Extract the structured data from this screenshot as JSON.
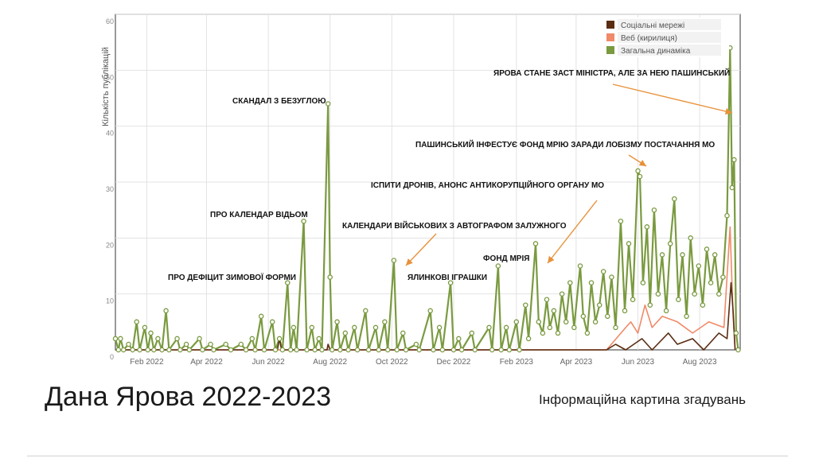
{
  "slide": {
    "title": "Дана Ярова 2022-2023",
    "subtitle": "Інформаційна картина згадувань"
  },
  "colors": {
    "social": "#5a2d12",
    "web": "#f08a68",
    "total": "#7a9a40",
    "arrow": "#e8913a"
  },
  "chart_data": {
    "type": "line",
    "title": "",
    "xlabel": "",
    "ylabel": "Кількість публікацій",
    "ylim": [
      0,
      60
    ],
    "yticks": [
      0,
      10,
      20,
      30,
      40,
      50,
      60
    ],
    "xlim": [
      "2022-01-01",
      "2023-09-10"
    ],
    "xticks": [
      {
        "date": "2022-02-01",
        "label": "Feb 2022"
      },
      {
        "date": "2022-04-01",
        "label": "Apr 2022"
      },
      {
        "date": "2022-06-01",
        "label": "Jun 2022"
      },
      {
        "date": "2022-08-01",
        "label": "Aug 2022"
      },
      {
        "date": "2022-10-01",
        "label": "Oct 2022"
      },
      {
        "date": "2022-12-01",
        "label": "Dec 2022"
      },
      {
        "date": "2023-02-01",
        "label": "Feb 2023"
      },
      {
        "date": "2023-04-01",
        "label": "Apr 2023"
      },
      {
        "date": "2023-06-01",
        "label": "Jun 2023"
      },
      {
        "date": "2023-08-01",
        "label": "Aug 2023"
      }
    ],
    "grid": true,
    "legend_position": "top-right",
    "series": [
      {
        "name": "Соціальні мережі",
        "color": "#5a2d12",
        "points": [
          [
            "2022-01-01",
            0
          ],
          [
            "2022-06-10",
            0
          ],
          [
            "2022-06-12",
            2
          ],
          [
            "2022-06-14",
            0
          ],
          [
            "2022-07-29",
            0
          ],
          [
            "2022-07-30",
            1
          ],
          [
            "2022-08-01",
            0
          ],
          [
            "2023-05-01",
            0
          ],
          [
            "2023-05-10",
            1
          ],
          [
            "2023-05-20",
            0
          ],
          [
            "2023-06-05",
            2
          ],
          [
            "2023-06-15",
            0
          ],
          [
            "2023-07-01",
            3
          ],
          [
            "2023-07-10",
            1
          ],
          [
            "2023-07-25",
            2
          ],
          [
            "2023-08-05",
            0
          ],
          [
            "2023-08-20",
            3
          ],
          [
            "2023-08-28",
            2
          ],
          [
            "2023-09-01",
            12
          ],
          [
            "2023-09-03",
            7
          ],
          [
            "2023-09-05",
            0
          ]
        ]
      },
      {
        "name": "Веб (кирилиця)",
        "color": "#f08a68",
        "points": [
          [
            "2022-01-01",
            0
          ],
          [
            "2022-07-29",
            0
          ],
          [
            "2022-07-30",
            1
          ],
          [
            "2022-08-01",
            0
          ],
          [
            "2023-05-01",
            0
          ],
          [
            "2023-05-20",
            4
          ],
          [
            "2023-05-25",
            5
          ],
          [
            "2023-06-01",
            3
          ],
          [
            "2023-06-08",
            8
          ],
          [
            "2023-06-15",
            4
          ],
          [
            "2023-06-25",
            6
          ],
          [
            "2023-07-10",
            5
          ],
          [
            "2023-07-25",
            3
          ],
          [
            "2023-08-10",
            5
          ],
          [
            "2023-08-25",
            4
          ],
          [
            "2023-08-31",
            22
          ],
          [
            "2023-09-03",
            6
          ],
          [
            "2023-09-05",
            0
          ]
        ]
      },
      {
        "name": "Загальна динаміка",
        "color": "#7a9a40",
        "points": [
          [
            "2022-01-01",
            2
          ],
          [
            "2022-01-04",
            0
          ],
          [
            "2022-01-06",
            2
          ],
          [
            "2022-01-09",
            0
          ],
          [
            "2022-01-14",
            1
          ],
          [
            "2022-01-18",
            0
          ],
          [
            "2022-01-22",
            5
          ],
          [
            "2022-01-25",
            0
          ],
          [
            "2022-01-30",
            4
          ],
          [
            "2022-02-02",
            0
          ],
          [
            "2022-02-05",
            3
          ],
          [
            "2022-02-08",
            0
          ],
          [
            "2022-02-12",
            2
          ],
          [
            "2022-02-16",
            0
          ],
          [
            "2022-02-20",
            7
          ],
          [
            "2022-02-23",
            0
          ],
          [
            "2022-03-03",
            2
          ],
          [
            "2022-03-06",
            0
          ],
          [
            "2022-03-12",
            1
          ],
          [
            "2022-03-15",
            0
          ],
          [
            "2022-03-25",
            2
          ],
          [
            "2022-03-28",
            0
          ],
          [
            "2022-04-05",
            1
          ],
          [
            "2022-04-08",
            0
          ],
          [
            "2022-04-20",
            1
          ],
          [
            "2022-04-25",
            0
          ],
          [
            "2022-05-05",
            1
          ],
          [
            "2022-05-10",
            0
          ],
          [
            "2022-05-16",
            2
          ],
          [
            "2022-05-19",
            0
          ],
          [
            "2022-05-25",
            6
          ],
          [
            "2022-05-28",
            0
          ],
          [
            "2022-06-05",
            5
          ],
          [
            "2022-06-08",
            0
          ],
          [
            "2022-06-12",
            2
          ],
          [
            "2022-06-15",
            0
          ],
          [
            "2022-06-20",
            12
          ],
          [
            "2022-06-23",
            0
          ],
          [
            "2022-06-26",
            4
          ],
          [
            "2022-06-29",
            0
          ],
          [
            "2022-07-06",
            23
          ],
          [
            "2022-07-09",
            0
          ],
          [
            "2022-07-14",
            4
          ],
          [
            "2022-07-17",
            0
          ],
          [
            "2022-07-21",
            2
          ],
          [
            "2022-07-24",
            0
          ],
          [
            "2022-07-30",
            44
          ],
          [
            "2022-08-01",
            13
          ],
          [
            "2022-08-03",
            0
          ],
          [
            "2022-08-08",
            5
          ],
          [
            "2022-08-11",
            0
          ],
          [
            "2022-08-16",
            3
          ],
          [
            "2022-08-19",
            0
          ],
          [
            "2022-08-25",
            4
          ],
          [
            "2022-08-28",
            0
          ],
          [
            "2022-09-05",
            7
          ],
          [
            "2022-09-08",
            0
          ],
          [
            "2022-09-15",
            4
          ],
          [
            "2022-09-18",
            0
          ],
          [
            "2022-09-24",
            5
          ],
          [
            "2022-09-27",
            0
          ],
          [
            "2022-10-03",
            16
          ],
          [
            "2022-10-06",
            0
          ],
          [
            "2022-10-12",
            3
          ],
          [
            "2022-10-15",
            0
          ],
          [
            "2022-10-25",
            1
          ],
          [
            "2022-10-28",
            0
          ],
          [
            "2022-11-08",
            7
          ],
          [
            "2022-11-11",
            0
          ],
          [
            "2022-11-17",
            4
          ],
          [
            "2022-11-20",
            0
          ],
          [
            "2022-11-28",
            12
          ],
          [
            "2022-12-01",
            0
          ],
          [
            "2022-12-06",
            2
          ],
          [
            "2022-12-09",
            0
          ],
          [
            "2022-12-19",
            3
          ],
          [
            "2022-12-22",
            0
          ],
          [
            "2023-01-05",
            4
          ],
          [
            "2023-01-08",
            0
          ],
          [
            "2023-01-14",
            15
          ],
          [
            "2023-01-17",
            0
          ],
          [
            "2023-01-22",
            4
          ],
          [
            "2023-01-25",
            0
          ],
          [
            "2023-02-01",
            5
          ],
          [
            "2023-02-04",
            0
          ],
          [
            "2023-02-10",
            8
          ],
          [
            "2023-02-13",
            2
          ],
          [
            "2023-02-20",
            19
          ],
          [
            "2023-02-23",
            5
          ],
          [
            "2023-02-27",
            3
          ],
          [
            "2023-03-03",
            9
          ],
          [
            "2023-03-06",
            4
          ],
          [
            "2023-03-10",
            7
          ],
          [
            "2023-03-14",
            3
          ],
          [
            "2023-03-18",
            10
          ],
          [
            "2023-03-22",
            5
          ],
          [
            "2023-03-26",
            12
          ],
          [
            "2023-03-30",
            4
          ],
          [
            "2023-04-05",
            15
          ],
          [
            "2023-04-08",
            6
          ],
          [
            "2023-04-12",
            3
          ],
          [
            "2023-04-16",
            12
          ],
          [
            "2023-04-20",
            5
          ],
          [
            "2023-04-24",
            8
          ],
          [
            "2023-04-28",
            14
          ],
          [
            "2023-05-02",
            6
          ],
          [
            "2023-05-06",
            13
          ],
          [
            "2023-05-10",
            4
          ],
          [
            "2023-05-15",
            23
          ],
          [
            "2023-05-19",
            7
          ],
          [
            "2023-05-23",
            19
          ],
          [
            "2023-05-27",
            9
          ],
          [
            "2023-06-01",
            32
          ],
          [
            "2023-06-03",
            31
          ],
          [
            "2023-06-06",
            12
          ],
          [
            "2023-06-10",
            22
          ],
          [
            "2023-06-13",
            8
          ],
          [
            "2023-06-17",
            25
          ],
          [
            "2023-06-21",
            10
          ],
          [
            "2023-06-25",
            17
          ],
          [
            "2023-06-29",
            7
          ],
          [
            "2023-07-03",
            19
          ],
          [
            "2023-07-07",
            27
          ],
          [
            "2023-07-11",
            9
          ],
          [
            "2023-07-15",
            17
          ],
          [
            "2023-07-19",
            6
          ],
          [
            "2023-07-23",
            20
          ],
          [
            "2023-07-27",
            10
          ],
          [
            "2023-07-31",
            15
          ],
          [
            "2023-08-04",
            8
          ],
          [
            "2023-08-08",
            18
          ],
          [
            "2023-08-12",
            12
          ],
          [
            "2023-08-16",
            17
          ],
          [
            "2023-08-20",
            10
          ],
          [
            "2023-08-24",
            13
          ],
          [
            "2023-08-28",
            24
          ],
          [
            "2023-08-31",
            54
          ],
          [
            "2023-09-02",
            29
          ],
          [
            "2023-09-04",
            34
          ],
          [
            "2023-09-06",
            3
          ],
          [
            "2023-09-08",
            0
          ]
        ]
      }
    ],
    "annotations": [
      {
        "text": "ПРО ДЕФІЦИТ ЗИМОВОЇ ФОРМИ",
        "arrow": false
      },
      {
        "text": "ПРО КАЛЕНДАР ВІДЬОМ",
        "arrow": false
      },
      {
        "text": "СКАНДАЛ З БЕЗУГЛОЮ",
        "arrow": false
      },
      {
        "text": "КАЛЕНДАРИ ВІЙСЬКОВИХ З АВТОГРАФОМ ЗАЛУЖНОГО",
        "arrow": true
      },
      {
        "text": "ЯЛИНКОВІ ІГРАШКИ",
        "arrow": false
      },
      {
        "text": "ІСПИТИ ДРОНІВ, АНОНС АНТИКОРУПЦІЙНОГО ОРГАНУ МО",
        "arrow": true
      },
      {
        "text": "ФОНД МРІЯ",
        "arrow": false
      },
      {
        "text": "ПАШИНСЬКИЙ ІНФЕСТУЄ ФОНД МРІЮ ЗАРАДИ ЛОБІЗМУ ПОСТАЧАННЯ МО",
        "arrow": true
      },
      {
        "text": "ЯРОВА СТАНЕ ЗАСТ МІНІСТРА, АЛЕ ЗА НЕЮ ПАШИНСЬКИЙ",
        "arrow": true
      }
    ]
  }
}
